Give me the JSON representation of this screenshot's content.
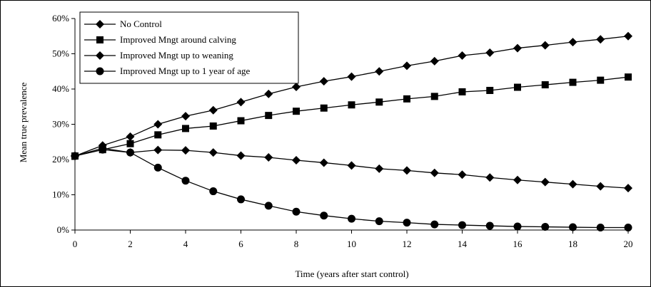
{
  "chart_data": {
    "type": "line",
    "title": "",
    "xlabel": "Time (years after start control)",
    "ylabel": "Mean true prevalence",
    "xlim": [
      0,
      20
    ],
    "ylim": [
      0,
      60
    ],
    "x_ticks": [
      "0",
      "2",
      "4",
      "6",
      "8",
      "10",
      "12",
      "14",
      "16",
      "18",
      "20"
    ],
    "y_ticks": [
      "0%",
      "10%",
      "20%",
      "30%",
      "40%",
      "50%",
      "60%"
    ],
    "x": [
      0,
      1,
      2,
      3,
      4,
      5,
      6,
      7,
      8,
      9,
      10,
      11,
      12,
      13,
      14,
      15,
      16,
      17,
      18,
      19,
      20
    ],
    "grid": false,
    "legend_position": "top-left",
    "series": [
      {
        "name": "No Control",
        "marker": "diamond",
        "values": [
          21,
          24,
          26.5,
          30,
          32.3,
          34,
          36.3,
          38.6,
          40.6,
          42.2,
          43.5,
          45,
          46.6,
          47.9,
          49.5,
          50.3,
          51.6,
          52.4,
          53.3,
          54.1,
          55
        ]
      },
      {
        "name": "Improved Mngt around calving",
        "marker": "square",
        "values": [
          21,
          22.8,
          24.5,
          27,
          28.8,
          29.5,
          31,
          32.5,
          33.7,
          34.6,
          35.5,
          36.3,
          37.2,
          37.9,
          39.2,
          39.6,
          40.5,
          41.2,
          41.9,
          42.5,
          43.4
        ]
      },
      {
        "name": "Improved Mngt up to weaning",
        "marker": "diamond",
        "values": [
          21,
          23.2,
          22,
          22.7,
          22.6,
          22,
          21.1,
          20.6,
          19.8,
          19.1,
          18.3,
          17.4,
          16.9,
          16.2,
          15.7,
          14.9,
          14.2,
          13.6,
          13,
          12.4,
          11.9
        ]
      },
      {
        "name": "Improved Mngt up to 1 year of age",
        "marker": "circle",
        "values": [
          21,
          22.8,
          22,
          17.7,
          14,
          11,
          8.7,
          6.9,
          5.2,
          4.1,
          3.2,
          2.5,
          2.1,
          1.6,
          1.4,
          1.2,
          1,
          0.9,
          0.8,
          0.7,
          0.7
        ]
      }
    ]
  }
}
